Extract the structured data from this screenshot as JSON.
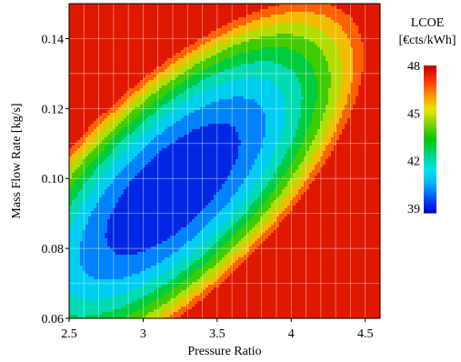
{
  "chart_data": {
    "type": "heatmap",
    "title": "",
    "xlabel": "Pressure Ratio",
    "ylabel": "Mass Flow Rate [kg/s]",
    "xlim": [
      2.5,
      4.6
    ],
    "ylim": [
      0.06,
      0.15
    ],
    "x_ticks": [
      {
        "value": 2.5,
        "label": "2.5"
      },
      {
        "value": 3.0,
        "label": "3"
      },
      {
        "value": 3.5,
        "label": "3.5"
      },
      {
        "value": 4.0,
        "label": "4"
      },
      {
        "value": 4.5,
        "label": "4.5"
      }
    ],
    "y_ticks": [
      {
        "value": 0.06,
        "label": "0.06"
      },
      {
        "value": 0.08,
        "label": "0.08"
      },
      {
        "value": 0.1,
        "label": "0.10"
      },
      {
        "value": 0.12,
        "label": "0.12"
      },
      {
        "value": 0.14,
        "label": "0.14"
      }
    ],
    "grid": true,
    "colorbar": {
      "title_line1": "LCOE",
      "title_line2": "[€cts/kWh]",
      "range": [
        38.7,
        48
      ],
      "ticks": [
        {
          "value": 48,
          "label": "48"
        },
        {
          "value": 45,
          "label": "45"
        },
        {
          "value": 42,
          "label": "42"
        },
        {
          "value": 39,
          "label": "39"
        }
      ],
      "colormap": [
        "#0000c8",
        "#0050ff",
        "#00b4ff",
        "#00e6e6",
        "#00d080",
        "#00c800",
        "#7ed000",
        "#e8e800",
        "#ff9000",
        "#ff3000",
        "#c00000"
      ]
    },
    "field": {
      "description_of_minimum": "LCOE minimum ~38.7 near Pressure Ratio 3.2, Mass Flow Rate 0.097 kg/s",
      "min_value": 38.7,
      "min_at": {
        "x": 3.2,
        "y": 0.097
      },
      "max_value": 48,
      "max_at": {
        "x": 2.5,
        "y": 0.15
      }
    },
    "levels": 10
  }
}
